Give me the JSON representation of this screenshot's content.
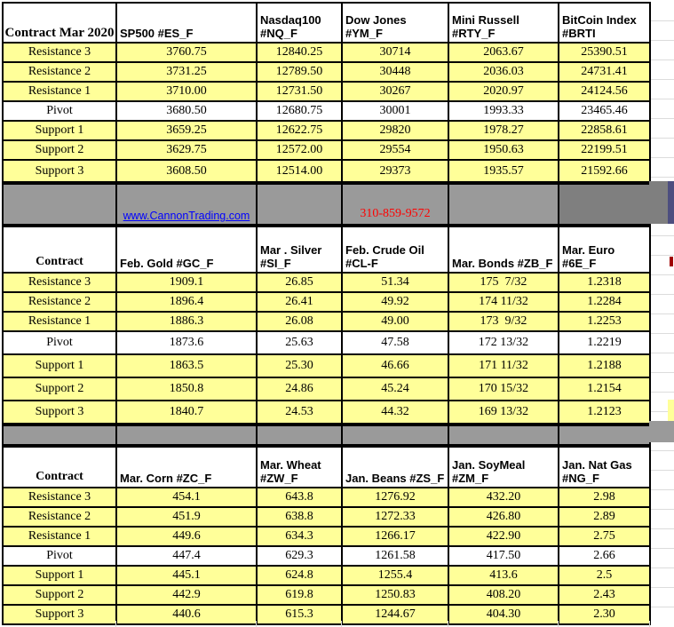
{
  "contact": {
    "website": "www.CannonTrading.com",
    "phone": "310-859-9572"
  },
  "colors": {
    "cell_yellow": "#FFFF99",
    "band_gray": "#9A9A9A",
    "band_dark_gray": "#7F7F7F",
    "link_blue": "#0000FF",
    "phone_red": "#FF0000",
    "border_black": "#000000"
  },
  "sections": [
    {
      "corner": "Contract  Mar 2020",
      "headers": [
        "SP500 #ES_F",
        "Nasdaq100 #NQ_F",
        "Dow Jones #YM_F",
        "Mini Russell #RTY_F",
        "BitCoin Index #BRTI"
      ],
      "rows": [
        {
          "label": "Resistance 3",
          "values": [
            "3760.75",
            "12840.25",
            "30714",
            "2063.67",
            "25390.51"
          ]
        },
        {
          "label": "Resistance 2",
          "values": [
            "3731.25",
            "12789.50",
            "30448",
            "2036.03",
            "24731.41"
          ]
        },
        {
          "label": "Resistance 1",
          "values": [
            "3710.00",
            "12731.50",
            "30267",
            "2020.97",
            "24124.56"
          ]
        },
        {
          "label": "Pivot",
          "values": [
            "3680.50",
            "12680.75",
            "30001",
            "1993.33",
            "23465.46"
          ]
        },
        {
          "label": "Support 1",
          "values": [
            "3659.25",
            "12622.75",
            "29820",
            "1978.27",
            "22858.61"
          ]
        },
        {
          "label": "Support 2",
          "values": [
            "3629.75",
            "12572.00",
            "29554",
            "1950.63",
            "22199.51"
          ]
        },
        {
          "label": "Support 3",
          "values": [
            "3608.50",
            "12514.00",
            "29373",
            "1935.57",
            "21592.66"
          ]
        }
      ]
    },
    {
      "corner": "Contract",
      "headers": [
        "Feb. Gold #GC_F",
        "Mar . Silver #SI_F",
        "Feb. Crude Oil #CL-F",
        "Mar. Bonds  #ZB_F",
        "Mar.  Euro #6E_F"
      ],
      "rows": [
        {
          "label": "Resistance 3",
          "values": [
            "1909.1",
            "26.85",
            "51.34",
            "175  7/32",
            "1.2318"
          ]
        },
        {
          "label": "Resistance 2",
          "values": [
            "1896.4",
            "26.41",
            "49.92",
            "174 11/32",
            "1.2284"
          ]
        },
        {
          "label": "Resistance 1",
          "values": [
            "1886.3",
            "26.08",
            "49.00",
            "173  9/32",
            "1.2253"
          ]
        },
        {
          "label": "Pivot",
          "values": [
            "1873.6",
            "25.63",
            "47.58",
            "172 13/32",
            "1.2219"
          ]
        },
        {
          "label": "Support 1",
          "values": [
            "1863.5",
            "25.30",
            "46.66",
            "171 11/32",
            "1.2188"
          ]
        },
        {
          "label": "Support 2",
          "values": [
            "1850.8",
            "24.86",
            "45.24",
            "170 15/32",
            "1.2154"
          ]
        },
        {
          "label": "Support 3",
          "values": [
            "1840.7",
            "24.53",
            "44.32",
            "169 13/32",
            "1.2123"
          ]
        }
      ]
    },
    {
      "corner": "Contract",
      "headers": [
        "Mar. Corn #ZC_F",
        "Mar.  Wheat #ZW_F",
        "Jan.  Beans #ZS_F",
        "Jan. SoyMeal #ZM_F",
        "Jan. Nat Gas #NG_F"
      ],
      "rows": [
        {
          "label": "Resistance 3",
          "values": [
            "454.1",
            "643.8",
            "1276.92",
            "432.20",
            "2.98"
          ]
        },
        {
          "label": "Resistance 2",
          "values": [
            "451.9",
            "638.8",
            "1272.33",
            "426.80",
            "2.89"
          ]
        },
        {
          "label": "Resistance 1",
          "values": [
            "449.6",
            "634.3",
            "1266.17",
            "422.90",
            "2.75"
          ]
        },
        {
          "label": "Pivot",
          "values": [
            "447.4",
            "629.3",
            "1261.58",
            "417.50",
            "2.66"
          ]
        },
        {
          "label": "Support 1",
          "values": [
            "445.1",
            "624.8",
            "1255.4",
            "413.6",
            "2.5"
          ]
        },
        {
          "label": "Support 2",
          "values": [
            "442.9",
            "619.8",
            "1250.83",
            "408.20",
            "2.43"
          ]
        },
        {
          "label": "Support 3",
          "values": [
            "440.6",
            "615.3",
            "1244.67",
            "404.30",
            "2.30"
          ]
        }
      ]
    }
  ]
}
